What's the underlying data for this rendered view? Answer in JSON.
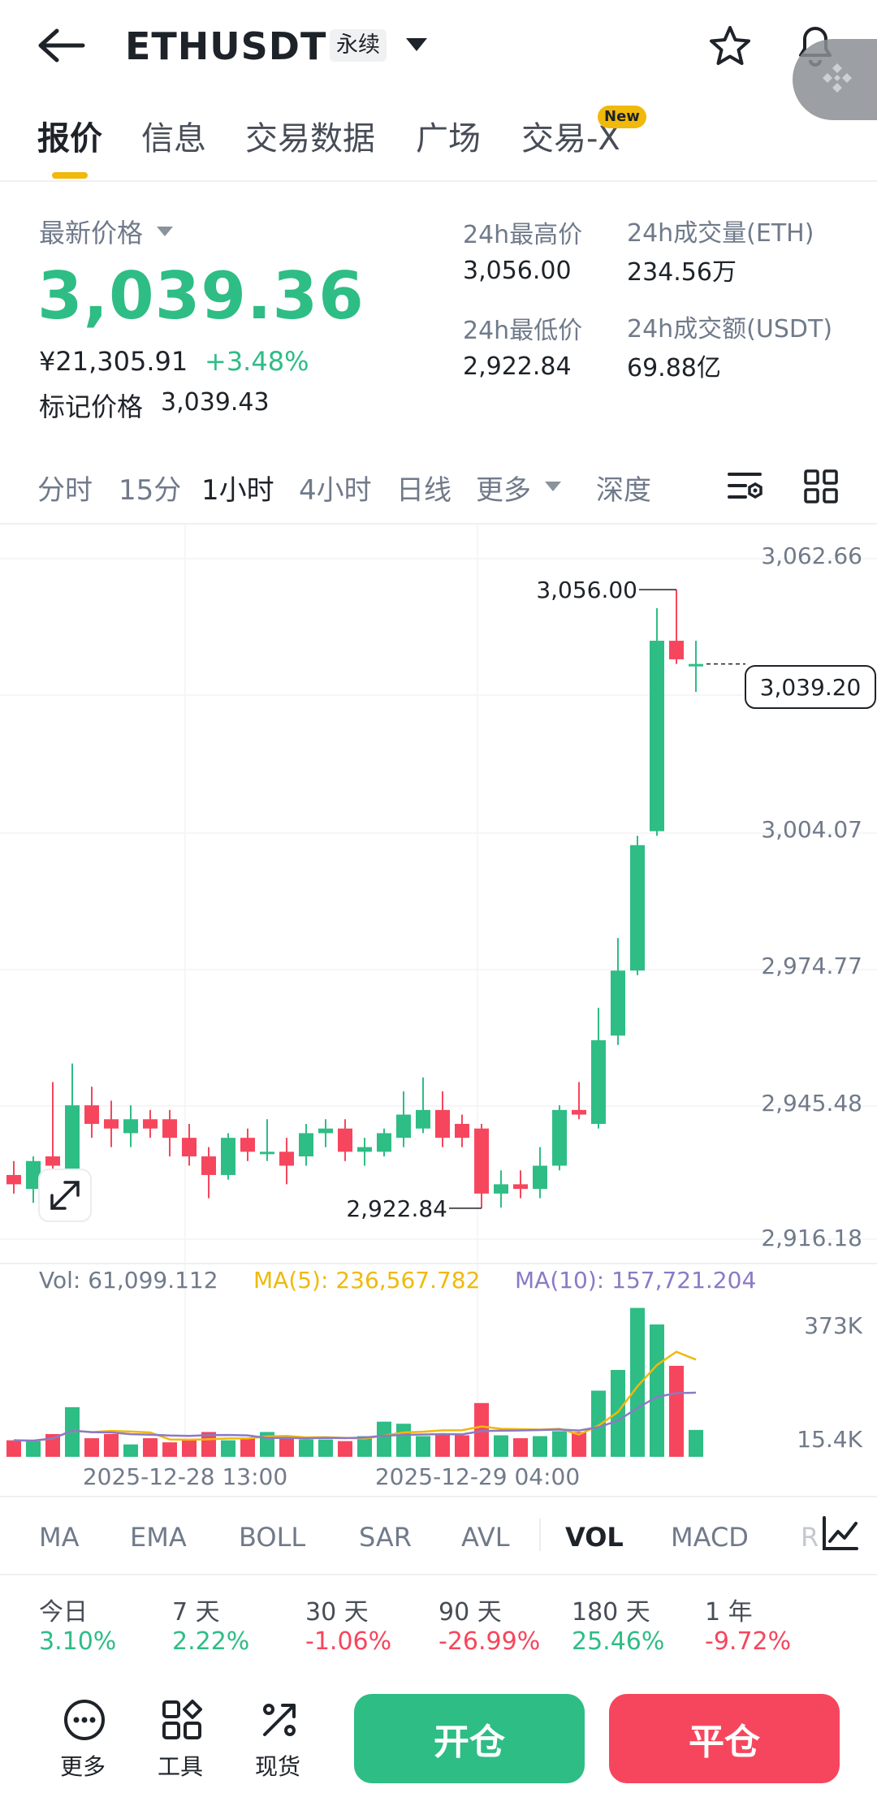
{
  "header": {
    "symbol": "ETHUSDT",
    "contract_type": "永续",
    "icons": [
      "back-arrow-icon",
      "caret-down-icon",
      "star-icon",
      "bell-icon"
    ]
  },
  "tabs": [
    {
      "label": "报价",
      "active": true
    },
    {
      "label": "信息"
    },
    {
      "label": "交易数据"
    },
    {
      "label": "广场"
    },
    {
      "label": "交易-X",
      "badge": "New"
    }
  ],
  "summary": {
    "latest_label": "最新价格",
    "latest_price": "3,039.36",
    "cny_price": "¥21,305.91",
    "change_pct": "+3.48%",
    "mark_label": "标记价格",
    "mark_price": "3,039.43",
    "stats": [
      {
        "label": "24h最高价",
        "value": "3,056.00"
      },
      {
        "label": "24h成交量(ETH)",
        "value": "234.56万"
      },
      {
        "label": "24h最低价",
        "value": "2,922.84"
      },
      {
        "label": "24h成交额(USDT)",
        "value": "69.88亿"
      }
    ]
  },
  "intervals": [
    {
      "label": "分时"
    },
    {
      "label": "15分"
    },
    {
      "label": "1小时",
      "active": true
    },
    {
      "label": "4小时"
    },
    {
      "label": "日线"
    },
    {
      "label": "更多"
    },
    {
      "label": "深度"
    }
  ],
  "chart_data": {
    "type": "candlestick",
    "interval": "1小时",
    "y_axis_ticks": [
      "3,062.66",
      "3,004.07",
      "2,974.77",
      "2,945.48",
      "2,916.18"
    ],
    "ylim": [
      2916.18,
      3062.66
    ],
    "current_price_label": "3,039.20",
    "high_marker": {
      "label": "3,056.00",
      "value": 3056.0
    },
    "low_marker": {
      "label": "2,922.84",
      "value": 2922.84
    },
    "x_labels": [
      "2025-12-28 13:00",
      "2025-12-29 04:00"
    ],
    "colors": {
      "up": "#2ebd85",
      "down": "#f6465d"
    },
    "candles": [
      {
        "o": 2930,
        "h": 2933,
        "l": 2926,
        "c": 2928
      },
      {
        "o": 2927,
        "h": 2934,
        "l": 2924,
        "c": 2933
      },
      {
        "o": 2934,
        "h": 2950,
        "l": 2929,
        "c": 2932
      },
      {
        "o": 2931,
        "h": 2954,
        "l": 2929,
        "c": 2945
      },
      {
        "o": 2945,
        "h": 2949,
        "l": 2938,
        "c": 2941
      },
      {
        "o": 2942,
        "h": 2946,
        "l": 2936,
        "c": 2940
      },
      {
        "o": 2939,
        "h": 2945,
        "l": 2936,
        "c": 2942
      },
      {
        "o": 2942,
        "h": 2944,
        "l": 2938,
        "c": 2940
      },
      {
        "o": 2942,
        "h": 2944,
        "l": 2934,
        "c": 2938
      },
      {
        "o": 2938,
        "h": 2941,
        "l": 2932,
        "c": 2934
      },
      {
        "o": 2934,
        "h": 2936,
        "l": 2925,
        "c": 2930
      },
      {
        "o": 2930,
        "h": 2939,
        "l": 2929,
        "c": 2938
      },
      {
        "o": 2938,
        "h": 2940,
        "l": 2933,
        "c": 2935
      },
      {
        "o": 2935,
        "h": 2942,
        "l": 2933,
        "c": 2935
      },
      {
        "o": 2935,
        "h": 2938,
        "l": 2928,
        "c": 2932
      },
      {
        "o": 2934,
        "h": 2941,
        "l": 2932,
        "c": 2939
      },
      {
        "o": 2939,
        "h": 2942,
        "l": 2936,
        "c": 2940
      },
      {
        "o": 2940,
        "h": 2942,
        "l": 2933,
        "c": 2935
      },
      {
        "o": 2935,
        "h": 2938,
        "l": 2932,
        "c": 2936
      },
      {
        "o": 2935,
        "h": 2940,
        "l": 2934,
        "c": 2939
      },
      {
        "o": 2938,
        "h": 2948,
        "l": 2936,
        "c": 2943
      },
      {
        "o": 2940,
        "h": 2951,
        "l": 2939,
        "c": 2944
      },
      {
        "o": 2944,
        "h": 2948,
        "l": 2936,
        "c": 2938
      },
      {
        "o": 2941,
        "h": 2943,
        "l": 2936,
        "c": 2938
      },
      {
        "o": 2940,
        "h": 2941,
        "l": 2922.84,
        "c": 2926
      },
      {
        "o": 2926,
        "h": 2931,
        "l": 2923,
        "c": 2928
      },
      {
        "o": 2928,
        "h": 2931,
        "l": 2925,
        "c": 2927
      },
      {
        "o": 2927,
        "h": 2936,
        "l": 2925,
        "c": 2932
      },
      {
        "o": 2932,
        "h": 2945,
        "l": 2931,
        "c": 2944
      },
      {
        "o": 2944,
        "h": 2950,
        "l": 2942,
        "c": 2943
      },
      {
        "o": 2941,
        "h": 2966,
        "l": 2940,
        "c": 2959
      },
      {
        "o": 2960,
        "h": 2981,
        "l": 2958,
        "c": 2974
      },
      {
        "o": 2974,
        "h": 3003,
        "l": 2973,
        "c": 3001
      },
      {
        "o": 3004,
        "h": 3052,
        "l": 3003,
        "c": 3045
      },
      {
        "o": 3045,
        "h": 3056.0,
        "l": 3040,
        "c": 3041
      },
      {
        "o": 3040,
        "h": 3045,
        "l": 3034,
        "c": 3040
      }
    ]
  },
  "volume": {
    "vol_label": "Vol: 61,099.112",
    "ma5_label": "MA(5): 236,567.782",
    "ma10_label": "MA(10): 157,721.204",
    "axis_max": "373K",
    "axis_min": "15.4K",
    "ma5_color": "#f0b90b",
    "ma10_color": "#8b7ac5",
    "values": [
      40,
      38,
      55,
      120,
      45,
      55,
      30,
      45,
      35,
      42,
      60,
      40,
      45,
      60,
      48,
      42,
      42,
      38,
      50,
      85,
      80,
      50,
      55,
      52,
      130,
      52,
      45,
      50,
      62,
      60,
      160,
      210,
      360,
      320,
      220,
      65
    ]
  },
  "indicators": [
    {
      "label": "MA"
    },
    {
      "label": "EMA"
    },
    {
      "label": "BOLL"
    },
    {
      "label": "SAR"
    },
    {
      "label": "AVL"
    },
    {
      "label": "VOL",
      "active": true
    },
    {
      "label": "MACD"
    },
    {
      "label": "R"
    }
  ],
  "performance": [
    {
      "label": "今日",
      "value": "3.10%",
      "color": "#2ebd85"
    },
    {
      "label": "7 天",
      "value": "2.22%",
      "color": "#2ebd85"
    },
    {
      "label": "30 天",
      "value": "-1.06%",
      "color": "#f6465d"
    },
    {
      "label": "90 天",
      "value": "-26.99%",
      "color": "#f6465d"
    },
    {
      "label": "180 天",
      "value": "25.46%",
      "color": "#2ebd85"
    },
    {
      "label": "1 年",
      "value": "-9.72%",
      "color": "#f6465d"
    }
  ],
  "bottom_bar": {
    "more": "更多",
    "tools": "工具",
    "spot": "现货",
    "open": "开仓",
    "close": "平仓"
  }
}
